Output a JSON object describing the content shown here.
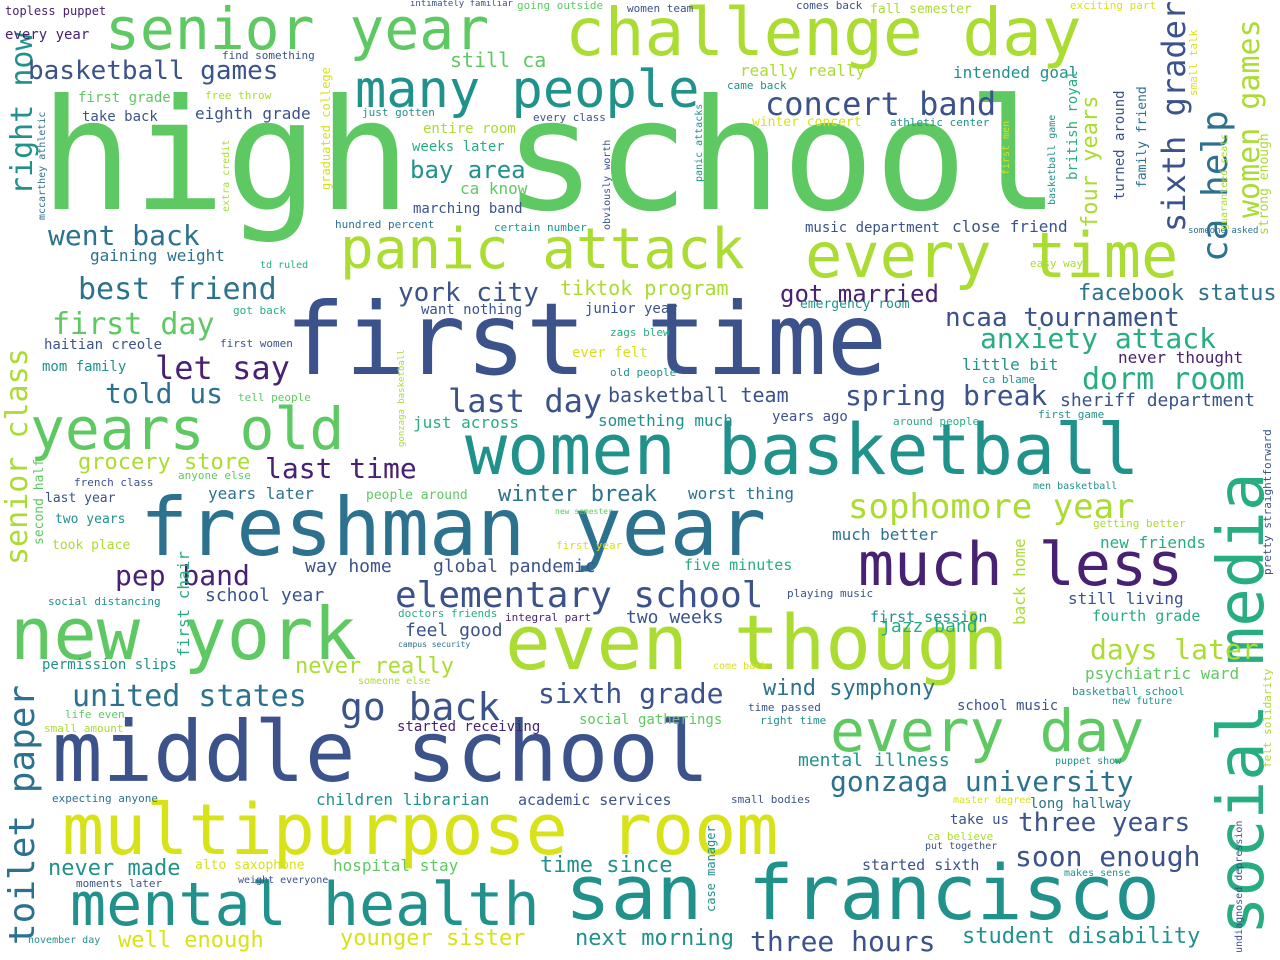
{
  "palette": {
    "purple": "#482173",
    "indigo": "#3b528b",
    "blue": "#2c728e",
    "teal": "#21918c",
    "green": "#27ad81",
    "lime": "#5ec962",
    "yellowgreen": "#aadc32",
    "yellow": "#d8e219"
  },
  "words": [
    "high school",
    "first time",
    "freshman year",
    "middle school",
    "multipurpose room",
    "san francisco",
    "even though",
    "women basketball",
    "new york",
    "challenge day",
    "senior year",
    "many people",
    "panic attack",
    "every time",
    "social media",
    "years old",
    "mental health",
    "every day",
    "much less",
    "elementary school",
    "sophomore year",
    "gonzaga university",
    "right now",
    "senior class",
    "toilet paper",
    "go back",
    "united states",
    "pep band",
    "let say",
    "told us",
    "best friend",
    "first day",
    "went back",
    "york city",
    "last day",
    "last time",
    "spring break",
    "anxiety attack",
    "ncaa tournament",
    "dorm room",
    "days later",
    "concert band",
    "basketball games",
    "sixth grade",
    "wind symphony",
    "three years",
    "soon enough",
    "student disability",
    "three hours",
    "next morning",
    "younger sister",
    "well enough",
    "never made",
    "ca help",
    "sixth graders",
    "women games",
    "got married",
    "winter break",
    "grocery store",
    "facebook status",
    "four years",
    "bay area",
    "tiktok program",
    "basketball team",
    "global pandemic",
    "way home",
    "school year",
    "feel good",
    "never really",
    "time since",
    "hospital stay",
    "children librarian",
    "academic services",
    "mental illness",
    "two weeks",
    "jazz band",
    "first session",
    "fourth grade",
    "psychiatric ward",
    "still living",
    "new friends",
    "sheriff department",
    "little bit",
    "never thought",
    "first chair",
    "back home",
    "something much",
    "much better",
    "years later",
    "worst thing",
    "years ago",
    "gaining weight",
    "eighth grade",
    "take back",
    "first grade",
    "permission slips",
    "weeks later",
    "entire room",
    "ca know",
    "marching band",
    "intended goal",
    "really really",
    "close friend",
    "music department",
    "still ca",
    "mom family",
    "haitian creole",
    "just across",
    "want nothing",
    "junior year",
    "ever felt",
    "old people",
    "every year",
    "topless puppet",
    "find something",
    "free throw",
    "graduated college",
    "mccarthey athletic",
    "extra credit",
    "hundred percent",
    "td ruled",
    "just gotten",
    "every class",
    "certain number",
    "obviously worth",
    "intimately familiar",
    "going outside",
    "women team",
    "comes back",
    "fall semester",
    "exciting part",
    "small talk",
    "came back",
    "winter concert",
    "athletic center",
    "first men",
    "basketball game",
    "british royal",
    "turned around",
    "family friend",
    "strong enough",
    "someone asked",
    "guaranteed seats",
    "panic attacks",
    "easy way",
    "emergency room",
    "zags blew",
    "got back",
    "first women",
    "gonzaga basketball",
    "tell people",
    "around people",
    "first game",
    "ca blame",
    "anyone else",
    "french class",
    "last year",
    "two years",
    "second half",
    "took place",
    "people around",
    "first year",
    "new semester",
    "men basketball",
    "getting better",
    "pretty straightforward",
    "social distancing",
    "doctors friends",
    "campus security",
    "integral part",
    "playing music",
    "five minutes",
    "someone else",
    "come back",
    "life even",
    "small amount",
    "started receiving",
    "social gatherings",
    "time passed",
    "right time",
    "school music",
    "basketball school",
    "new future",
    "felt solidarity",
    "expecting anyone",
    "case manager",
    "small bodies",
    "long hallway",
    "master degree",
    "puppet show",
    "take us",
    "ca believe",
    "put together",
    "undiagnosed depression",
    "started sixth",
    "makes sense",
    "moments later",
    "weight everyone",
    "alto saxophone",
    "november day"
  ]
}
